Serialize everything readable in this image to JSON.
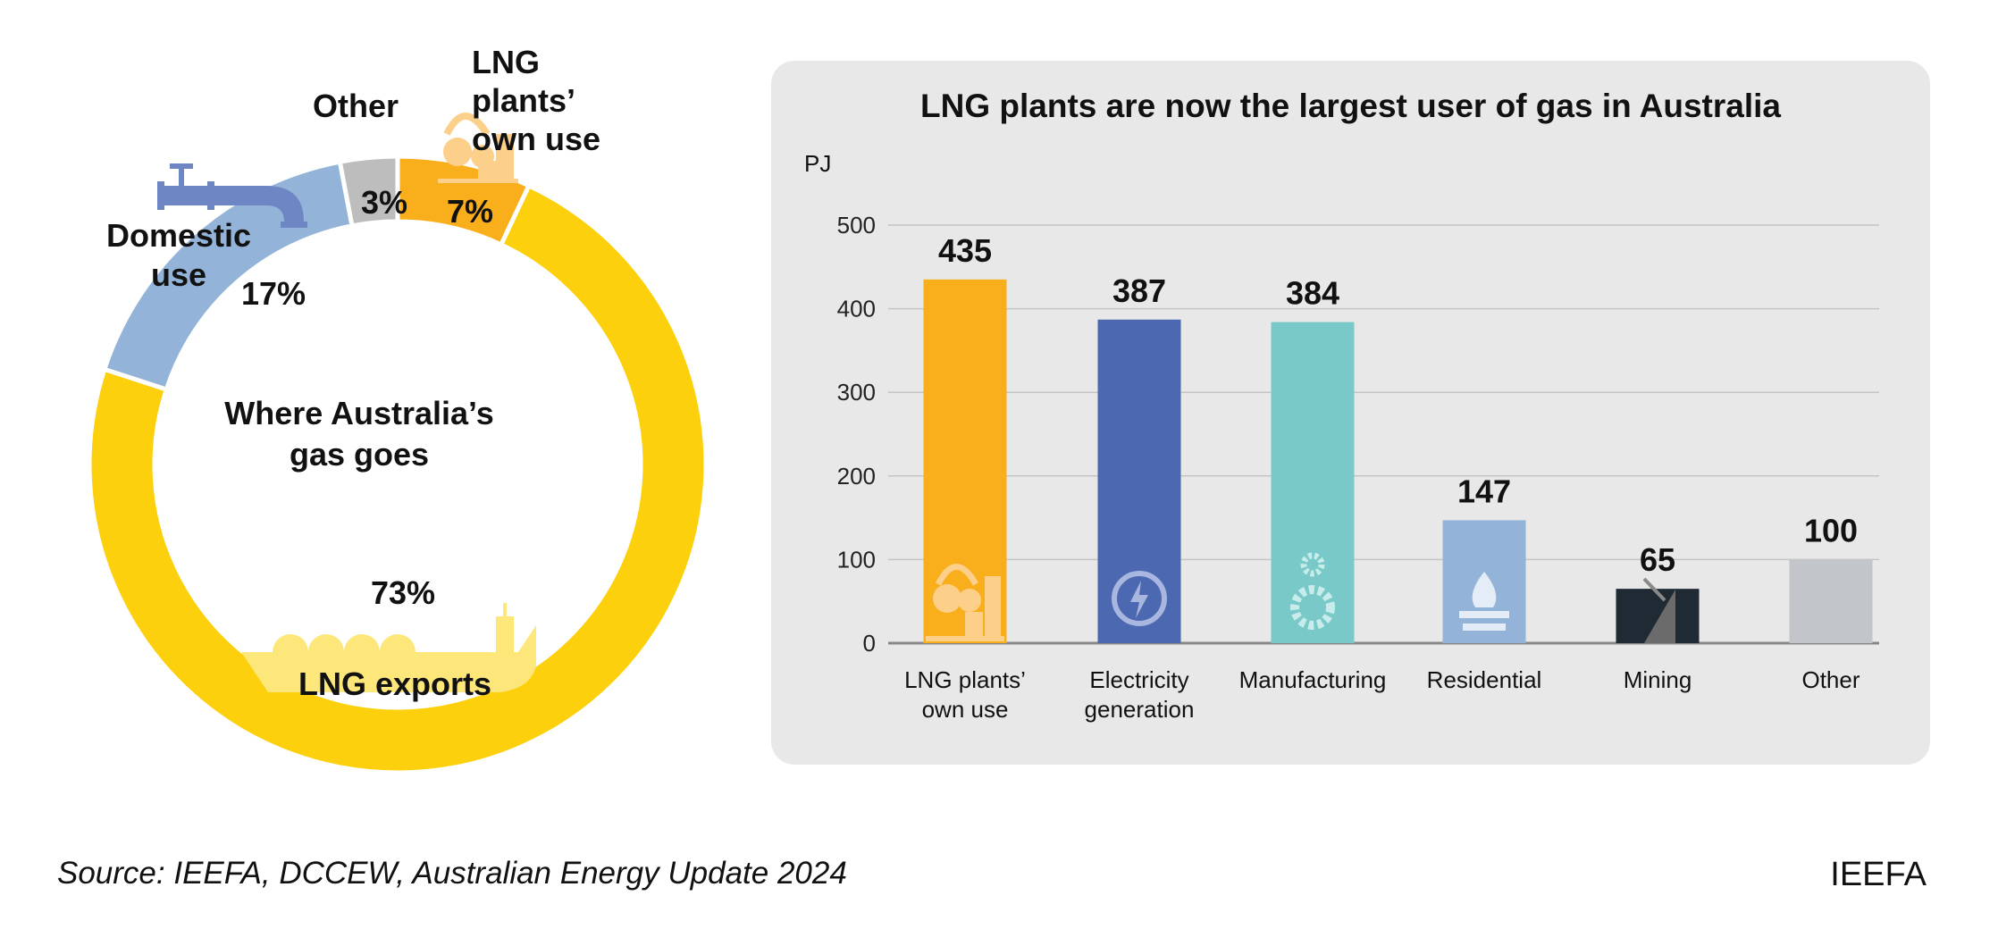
{
  "chart_data": [
    {
      "type": "pie",
      "variant": "donut",
      "title": "Where Australia’s gas goes",
      "slices": [
        {
          "label": "LNG plants’ own use",
          "value": 7,
          "value_label": "7%",
          "color": "#f9ae1b"
        },
        {
          "label": "LNG exports",
          "value": 73,
          "value_label": "73%",
          "color": "#fdd00e"
        },
        {
          "label": "Domestic use",
          "value": 17,
          "value_label": "17%",
          "color": "#93b3d8"
        },
        {
          "label": "Other",
          "value": 3,
          "value_label": "3%",
          "color": "#bdbdbd"
        }
      ],
      "icons": [
        "lng-plant-icon",
        "lng-ship-icon",
        "pipeline-icon"
      ]
    },
    {
      "type": "bar",
      "title": "LNG plants are now the largest user of gas in Australia",
      "ylabel": "PJ",
      "ylim": [
        0,
        500
      ],
      "yticks": [
        0,
        100,
        200,
        300,
        400,
        500
      ],
      "grid": true,
      "categories": [
        "LNG plants’ own use",
        "Electricity generation",
        "Manufacturing",
        "Residential",
        "Mining",
        "Other"
      ],
      "category_lines": [
        [
          "LNG plants’",
          "own use"
        ],
        [
          "Electricity",
          "generation"
        ],
        [
          "Manufacturing"
        ],
        [
          "Residential"
        ],
        [
          "Mining"
        ],
        [
          "Other"
        ]
      ],
      "values": [
        435,
        387,
        384,
        147,
        65,
        100
      ],
      "colors": [
        "#f9ae1b",
        "#4c68b0",
        "#79c9c8",
        "#93b3d8",
        "#1f2a35",
        "#c2c5c9"
      ],
      "icons": [
        "lng-plant-icon",
        "lightning-icon",
        "gears-icon",
        "flame-icon",
        "pickaxe-icon",
        ""
      ]
    }
  ],
  "footer": {
    "source": "Source: IEEFA, DCCEW, Australian Energy Update 2024",
    "brand": "IEEFA"
  }
}
